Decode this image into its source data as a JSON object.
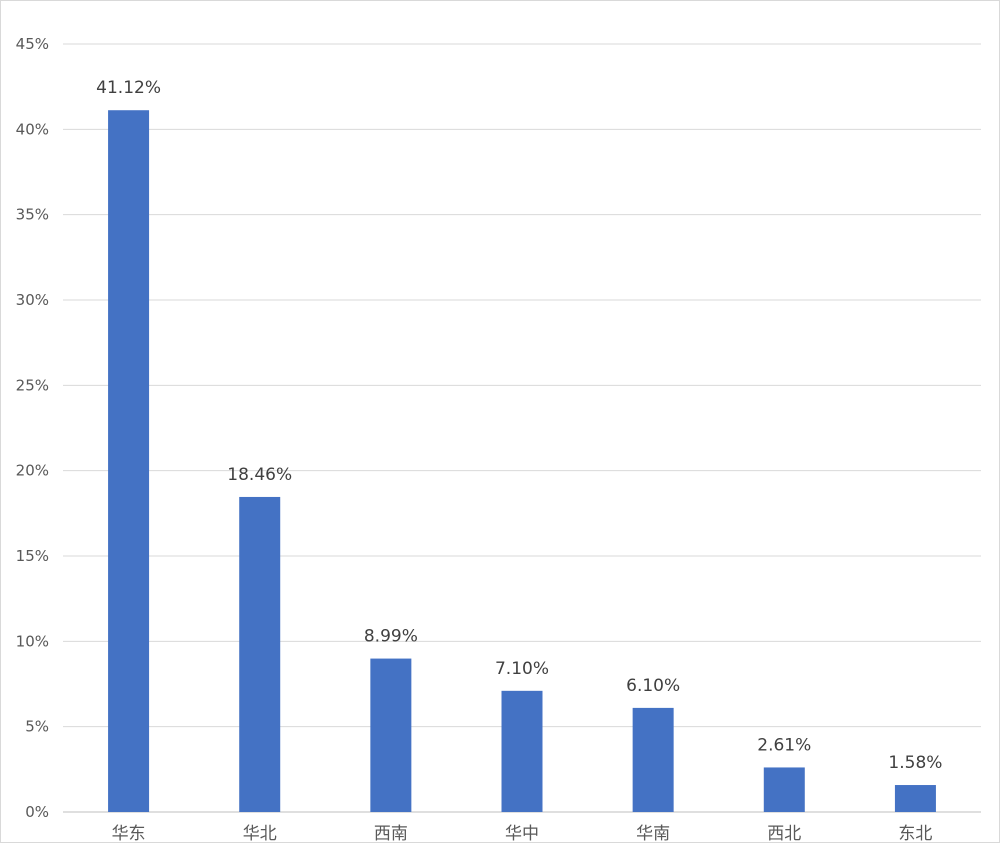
{
  "chart_data": {
    "type": "bar",
    "categories": [
      "华东",
      "华北",
      "西南",
      "华中",
      "华南",
      "西北",
      "东北"
    ],
    "values": [
      41.12,
      18.46,
      8.99,
      7.1,
      6.1,
      2.61,
      1.58
    ],
    "data_labels": [
      "41.12%",
      "18.46%",
      "8.99%",
      "7.10%",
      "6.10%",
      "2.61%",
      "1.58%"
    ],
    "y_ticks": [
      0,
      5,
      10,
      15,
      20,
      25,
      30,
      35,
      40,
      45
    ],
    "y_tick_labels": [
      "0%",
      "5%",
      "10%",
      "15%",
      "20%",
      "25%",
      "30%",
      "35%",
      "40%",
      "45%"
    ],
    "ylim": [
      0,
      45
    ],
    "y_unit": "%",
    "title": "",
    "xlabel": "",
    "ylabel": "",
    "grid": true,
    "legend": "none",
    "bar_color": "#4472C4"
  }
}
